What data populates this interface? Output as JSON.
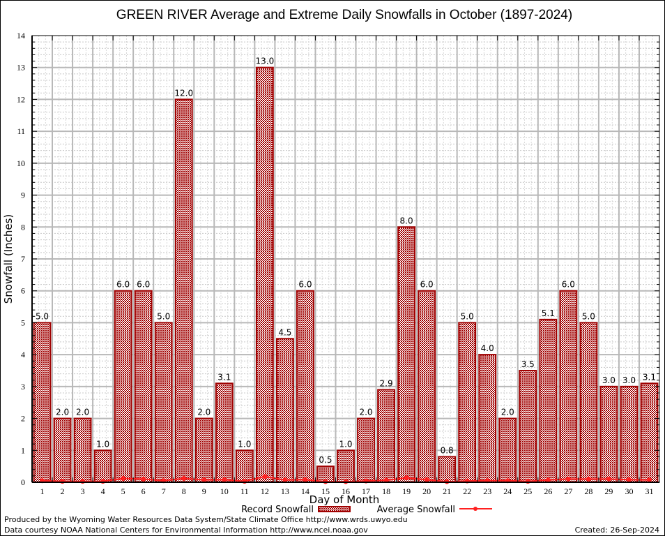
{
  "chart_data": {
    "type": "bar",
    "title": "GREEN RIVER Average and Extreme Daily Snowfalls in October (1897-2024)",
    "xlabel": "Day of Month",
    "ylabel": "Snowfall (Inches)",
    "ylim": [
      0,
      14
    ],
    "yticks": [
      "0",
      "1",
      "2",
      "3",
      "4",
      "5",
      "6",
      "7",
      "8",
      "9",
      "10",
      "11",
      "12",
      "13",
      "14"
    ],
    "categories": [
      "1",
      "2",
      "3",
      "4",
      "5",
      "6",
      "7",
      "8",
      "9",
      "10",
      "11",
      "12",
      "13",
      "14",
      "15",
      "16",
      "17",
      "18",
      "19",
      "20",
      "21",
      "22",
      "23",
      "24",
      "25",
      "26",
      "27",
      "28",
      "29",
      "30",
      "31"
    ],
    "grid": true,
    "legend_position": "bottom",
    "series": [
      {
        "name": "Record Snowfall",
        "kind": "bar",
        "color": "#a00000",
        "values": [
          5.0,
          2.0,
          2.0,
          1.0,
          6.0,
          6.0,
          5.0,
          12.0,
          2.0,
          3.1,
          1.0,
          13.0,
          4.5,
          6.0,
          0.5,
          1.0,
          2.0,
          2.9,
          8.0,
          6.0,
          0.8,
          5.0,
          4.0,
          2.0,
          3.5,
          5.1,
          6.0,
          5.0,
          3.0,
          3.0,
          3.1
        ],
        "labels": [
          "5.0",
          "2.0",
          "2.0",
          "1.0",
          "6.0",
          "6.0",
          "5.0",
          "12.0",
          "2.0",
          "3.1",
          "1.0",
          "13.0",
          "4.5",
          "6.0",
          "0.5",
          "1.0",
          "2.0",
          "2.9",
          "8.0",
          "6.0",
          "0.8",
          "5.0",
          "4.0",
          "2.0",
          "3.5",
          "5.1",
          "6.0",
          "5.0",
          "3.0",
          "3.0",
          "3.1"
        ]
      },
      {
        "name": "Average Snowfall",
        "kind": "line",
        "color": "#ff2020",
        "values": [
          0.05,
          0.03,
          0.03,
          0.03,
          0.12,
          0.1,
          0.05,
          0.12,
          0.07,
          0.08,
          0.03,
          0.18,
          0.07,
          0.08,
          0.02,
          0.02,
          0.04,
          0.06,
          0.14,
          0.08,
          0.02,
          0.04,
          0.05,
          0.05,
          0.03,
          0.07,
          0.1,
          0.1,
          0.1,
          0.08,
          0.07
        ]
      }
    ]
  },
  "footer": {
    "produced_by": "Produced by the Wyoming Water Resources Data System/State Climate Office http://www.wrds.uwyo.edu",
    "data_courtesy": "Data courtesy NOAA National Centers for Environmental Information http://www.ncei.noaa.gov",
    "created": "Created: 26-Sep-2024"
  }
}
